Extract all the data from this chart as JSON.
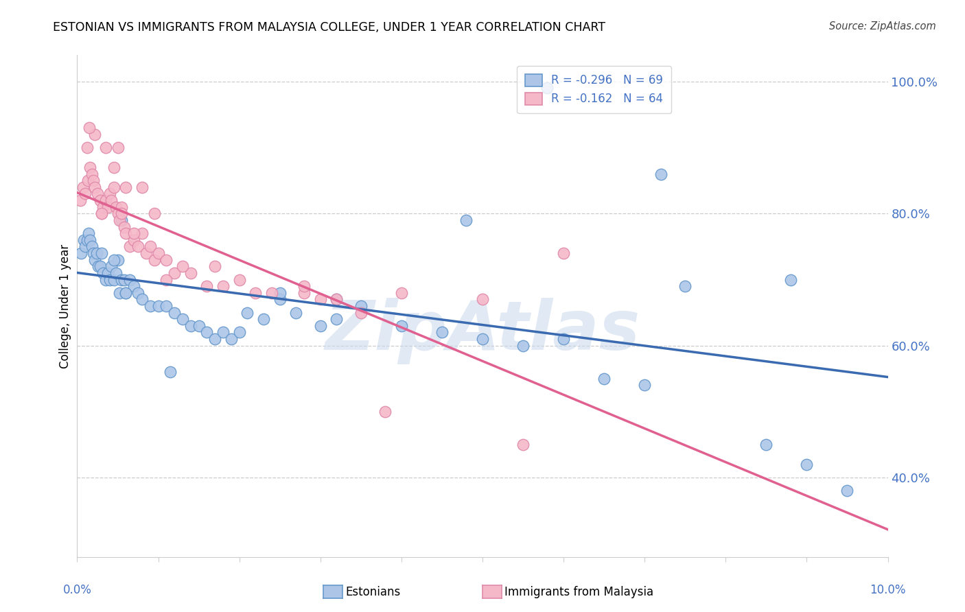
{
  "title": "ESTONIAN VS IMMIGRANTS FROM MALAYSIA COLLEGE, UNDER 1 YEAR CORRELATION CHART",
  "source": "Source: ZipAtlas.com",
  "ylabel": "College, Under 1 year",
  "r_blue": -0.296,
  "n_blue": 69,
  "r_pink": -0.162,
  "n_pink": 64,
  "blue_scatter_color": "#adc6e8",
  "blue_edge_color": "#6699cc",
  "blue_line_color": "#3a6ab0",
  "pink_scatter_color": "#f5b8c8",
  "pink_edge_color": "#e08aaa",
  "pink_line_color": "#e06090",
  "legend_label_blue": "Estonians",
  "legend_label_pink": "Immigrants from Malaysia",
  "xmin": 0.0,
  "xmax": 10.0,
  "ymin": 28.0,
  "ymax": 104.0,
  "yticks": [
    40.0,
    60.0,
    80.0,
    100.0
  ],
  "blue_x": [
    0.05,
    0.08,
    0.1,
    0.12,
    0.14,
    0.16,
    0.18,
    0.2,
    0.22,
    0.24,
    0.26,
    0.28,
    0.3,
    0.32,
    0.35,
    0.38,
    0.4,
    0.42,
    0.45,
    0.48,
    0.5,
    0.52,
    0.55,
    0.58,
    0.6,
    0.65,
    0.7,
    0.75,
    0.8,
    0.9,
    1.0,
    1.1,
    1.2,
    1.3,
    1.4,
    1.5,
    1.6,
    1.7,
    1.8,
    1.9,
    2.0,
    2.1,
    2.3,
    2.5,
    2.7,
    3.0,
    3.2,
    3.5,
    4.0,
    4.5,
    5.0,
    5.5,
    6.0,
    6.5,
    7.0,
    7.5,
    8.5,
    9.0,
    9.5,
    0.55,
    2.5,
    4.8,
    5.8,
    7.2,
    8.8,
    3.2,
    0.45,
    0.6,
    1.15
  ],
  "blue_y": [
    74,
    76,
    75,
    76,
    77,
    76,
    75,
    74,
    73,
    74,
    72,
    72,
    74,
    71,
    70,
    71,
    70,
    72,
    70,
    71,
    73,
    68,
    70,
    70,
    68,
    70,
    69,
    68,
    67,
    66,
    66,
    66,
    65,
    64,
    63,
    63,
    62,
    61,
    62,
    61,
    62,
    65,
    64,
    67,
    65,
    63,
    64,
    66,
    63,
    62,
    61,
    60,
    61,
    55,
    54,
    69,
    45,
    42,
    38,
    79,
    68,
    79,
    99,
    86,
    70,
    67,
    73,
    68,
    56
  ],
  "pink_x": [
    0.04,
    0.07,
    0.1,
    0.13,
    0.16,
    0.18,
    0.2,
    0.22,
    0.25,
    0.28,
    0.3,
    0.32,
    0.35,
    0.38,
    0.4,
    0.42,
    0.45,
    0.48,
    0.5,
    0.52,
    0.55,
    0.58,
    0.6,
    0.65,
    0.7,
    0.75,
    0.8,
    0.85,
    0.9,
    0.95,
    1.0,
    1.1,
    1.2,
    1.4,
    1.6,
    1.8,
    2.0,
    2.4,
    2.8,
    3.2,
    4.0,
    5.0,
    6.0,
    0.35,
    0.5,
    0.7,
    0.95,
    1.3,
    1.7,
    2.2,
    3.5,
    0.22,
    0.45,
    3.8,
    0.15,
    0.6,
    0.8,
    5.5,
    3.0,
    2.8,
    0.12,
    0.3,
    0.55,
    1.1
  ],
  "pink_y": [
    82,
    84,
    83,
    85,
    87,
    86,
    85,
    84,
    83,
    82,
    80,
    81,
    82,
    81,
    83,
    82,
    84,
    81,
    80,
    79,
    81,
    78,
    77,
    75,
    76,
    75,
    77,
    74,
    75,
    73,
    74,
    73,
    71,
    71,
    69,
    69,
    70,
    68,
    68,
    67,
    68,
    67,
    74,
    90,
    90,
    77,
    80,
    72,
    72,
    68,
    65,
    92,
    87,
    50,
    93,
    84,
    84,
    45,
    67,
    69,
    90,
    80,
    80,
    70
  ]
}
